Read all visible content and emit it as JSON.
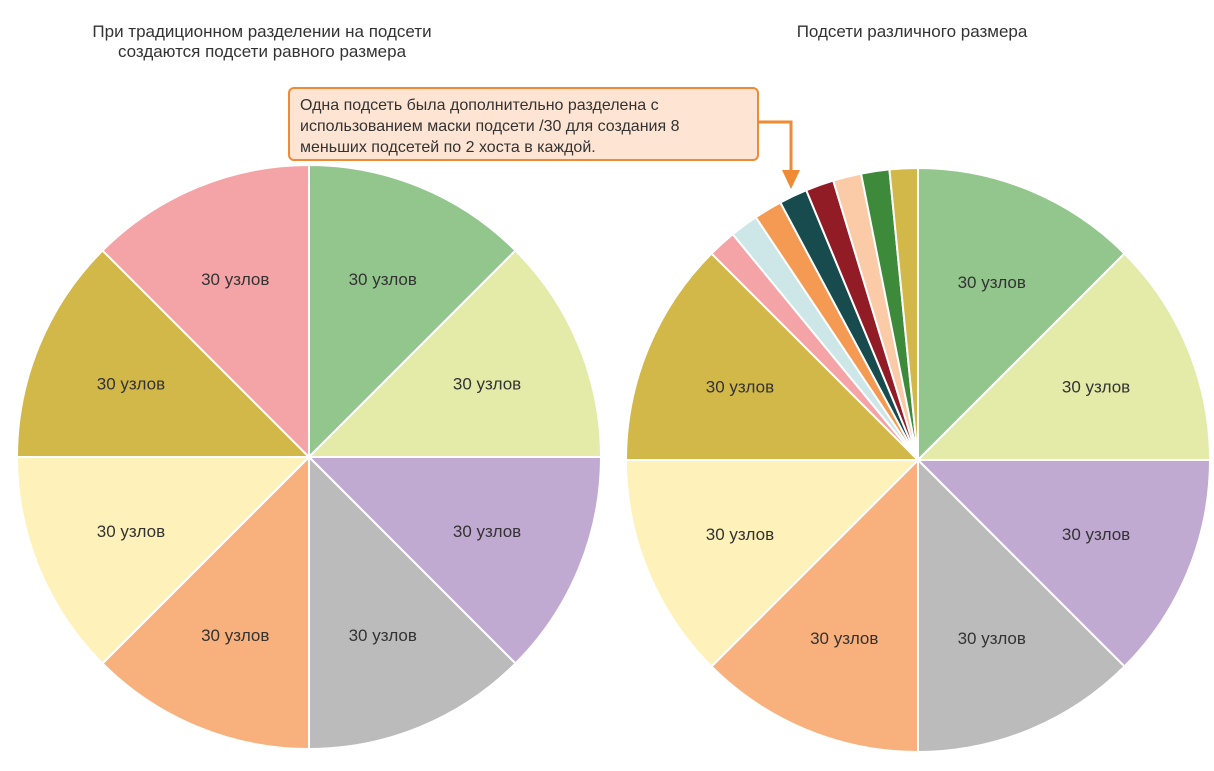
{
  "chart_data": [
    {
      "type": "pie",
      "title_lines": [
        "При традиционном разделении на подсети",
        "создаются подсети равного размера"
      ],
      "slices": [
        {
          "label": "30 узлов",
          "value": 1,
          "color": "#93c68d"
        },
        {
          "label": "30 узлов",
          "value": 1,
          "color": "#e4eaa8"
        },
        {
          "label": "30 узлов",
          "value": 1,
          "color": "#c1aad2"
        },
        {
          "label": "30 узлов",
          "value": 1,
          "color": "#bcbbbb"
        },
        {
          "label": "30 узлов",
          "value": 1,
          "color": "#f8b07c"
        },
        {
          "label": "30 узлов",
          "value": 1,
          "color": "#fef1b9"
        },
        {
          "label": "30 узлов",
          "value": 1,
          "color": "#d2b849"
        },
        {
          "label": "30 узлов",
          "value": 1,
          "color": "#f4a4a6"
        }
      ]
    },
    {
      "type": "pie",
      "title_lines": [
        "Подсети различного размера"
      ],
      "slices": [
        {
          "label": "30 узлов",
          "value": 8,
          "color": "#93c68d"
        },
        {
          "label": "30 узлов",
          "value": 8,
          "color": "#e4eaa8"
        },
        {
          "label": "30 узлов",
          "value": 8,
          "color": "#c1aad2"
        },
        {
          "label": "30 узлов",
          "value": 8,
          "color": "#bcbbbb"
        },
        {
          "label": "30 узлов",
          "value": 8,
          "color": "#f8b07c"
        },
        {
          "label": "30 узлов",
          "value": 8,
          "color": "#fef1b9"
        },
        {
          "label": "30 узлов",
          "value": 8,
          "color": "#d2b849"
        },
        {
          "label": "",
          "value": 1,
          "color": "#f4a4a6"
        },
        {
          "label": "",
          "value": 1,
          "color": "#cde6e8"
        },
        {
          "label": "",
          "value": 1,
          "color": "#f59a52"
        },
        {
          "label": "",
          "value": 1,
          "color": "#174b4e"
        },
        {
          "label": "",
          "value": 1,
          "color": "#921c26"
        },
        {
          "label": "",
          "value": 1,
          "color": "#fbcaa6"
        },
        {
          "label": "",
          "value": 1,
          "color": "#3d8a3b"
        },
        {
          "label": "",
          "value": 1,
          "color": "#d2b849"
        }
      ]
    }
  ],
  "callout": {
    "lines": [
      "Одна подсеть была дополнительно разделена с",
      "использованием маски подсети /30 для создания 8",
      "меньших подсетей по 2 хоста в каждой."
    ],
    "border_color": "#ef8a35",
    "fill_color": "#fde4d3"
  }
}
